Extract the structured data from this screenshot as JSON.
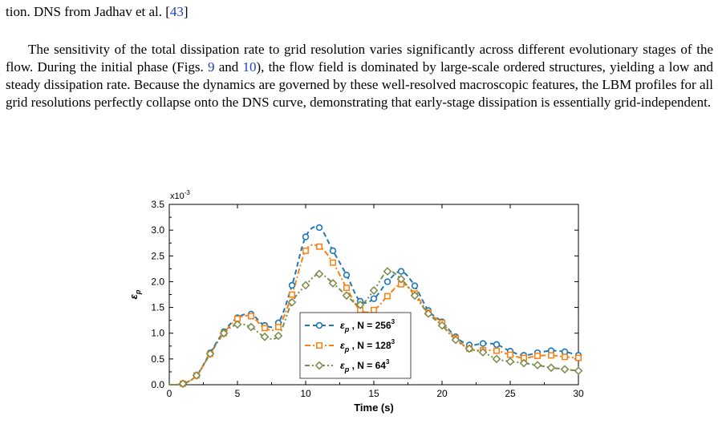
{
  "caption_tail": {
    "text": "tion. DNS from Jadhav et al. [",
    "ref": "43",
    "close": "]"
  },
  "paragraph": {
    "part1": "The sensitivity of the total dissipation rate to grid resolution varies significantly across different evolutionary stages of the flow. During the initial phase (Figs.",
    "ref1": "9",
    "and": "and",
    "ref2": "10",
    "part2": "), the flow field is dominated by large-scale ordered structures, yielding a low and steady dissipation rate. Because the dynamics are governed by these well-resolved macroscopic features, the LBM profiles for all grid resolutions perfectly collapse onto the DNS curve, demonstrating that early-stage dissipation is essentially grid-independent."
  },
  "chart_data": {
    "type": "line",
    "xlabel": "Time (s)",
    "ylabel": "ε_p",
    "y_multiplier": "x10^-3",
    "xlim": [
      0,
      30
    ],
    "ylim": [
      0.0,
      3.5
    ],
    "xticks": [
      0,
      5,
      10,
      15,
      20,
      25,
      30
    ],
    "yticks": [
      0.0,
      0.5,
      1.0,
      1.5,
      2.0,
      2.5,
      3.0,
      3.5
    ],
    "grid": false,
    "legend_position": "bottom-center",
    "series": [
      {
        "name": "ε_p , N = 256^3",
        "color": "#1f77b4",
        "marker": "circle",
        "line": "dashed",
        "points": [
          [
            0,
            0.0
          ],
          [
            1,
            0.02
          ],
          [
            2,
            0.18
          ],
          [
            3,
            0.62
          ],
          [
            4,
            1.03
          ],
          [
            5,
            1.3
          ],
          [
            6,
            1.37
          ],
          [
            7,
            1.15
          ],
          [
            8,
            1.2
          ],
          [
            9,
            1.93
          ],
          [
            10,
            2.87
          ],
          [
            11,
            3.05
          ],
          [
            12,
            2.6
          ],
          [
            13,
            2.13
          ],
          [
            14,
            1.62
          ],
          [
            15,
            1.67
          ],
          [
            16,
            2.0
          ],
          [
            17,
            2.2
          ],
          [
            18,
            1.92
          ],
          [
            19,
            1.44
          ],
          [
            20,
            1.22
          ],
          [
            21,
            0.93
          ],
          [
            22,
            0.77
          ],
          [
            23,
            0.8
          ],
          [
            24,
            0.78
          ],
          [
            25,
            0.65
          ],
          [
            26,
            0.57
          ],
          [
            27,
            0.62
          ],
          [
            28,
            0.66
          ],
          [
            29,
            0.64
          ],
          [
            30,
            0.57
          ]
        ]
      },
      {
        "name": "ε_p , N = 128^3",
        "color": "#ff7f0e",
        "marker": "square",
        "line": "dashdot",
        "points": [
          [
            0,
            0.0
          ],
          [
            1,
            0.02
          ],
          [
            2,
            0.18
          ],
          [
            3,
            0.6
          ],
          [
            4,
            1.0
          ],
          [
            5,
            1.28
          ],
          [
            6,
            1.33
          ],
          [
            7,
            1.1
          ],
          [
            8,
            1.12
          ],
          [
            9,
            1.75
          ],
          [
            10,
            2.6
          ],
          [
            11,
            2.68
          ],
          [
            12,
            2.37
          ],
          [
            13,
            1.88
          ],
          [
            14,
            1.45
          ],
          [
            15,
            1.45
          ],
          [
            16,
            1.72
          ],
          [
            17,
            1.95
          ],
          [
            18,
            1.77
          ],
          [
            19,
            1.4
          ],
          [
            20,
            1.2
          ],
          [
            21,
            0.9
          ],
          [
            22,
            0.7
          ],
          [
            23,
            0.67
          ],
          [
            24,
            0.66
          ],
          [
            25,
            0.58
          ],
          [
            26,
            0.52
          ],
          [
            27,
            0.56
          ],
          [
            28,
            0.57
          ],
          [
            29,
            0.54
          ],
          [
            30,
            0.52
          ]
        ]
      },
      {
        "name": "ε_p , N = 64^3",
        "color": "#7a8a4a",
        "marker": "diamond",
        "line": "dashdotdot",
        "points": [
          [
            0,
            0.0
          ],
          [
            1,
            0.02
          ],
          [
            2,
            0.18
          ],
          [
            3,
            0.6
          ],
          [
            4,
            1.0
          ],
          [
            5,
            1.17
          ],
          [
            6,
            1.12
          ],
          [
            7,
            0.93
          ],
          [
            8,
            0.95
          ],
          [
            9,
            1.6
          ],
          [
            10,
            1.93
          ],
          [
            11,
            2.15
          ],
          [
            12,
            1.97
          ],
          [
            13,
            1.73
          ],
          [
            14,
            1.55
          ],
          [
            15,
            1.83
          ],
          [
            16,
            2.2
          ],
          [
            17,
            2.05
          ],
          [
            18,
            1.73
          ],
          [
            19,
            1.38
          ],
          [
            20,
            1.15
          ],
          [
            21,
            0.87
          ],
          [
            22,
            0.7
          ],
          [
            23,
            0.63
          ],
          [
            24,
            0.5
          ],
          [
            25,
            0.45
          ],
          [
            26,
            0.42
          ],
          [
            27,
            0.38
          ],
          [
            28,
            0.33
          ],
          [
            29,
            0.3
          ],
          [
            30,
            0.27
          ]
        ]
      }
    ]
  }
}
